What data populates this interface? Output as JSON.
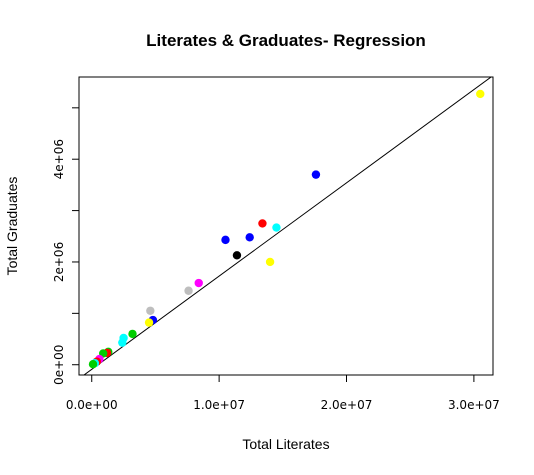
{
  "chart_data": {
    "type": "scatter",
    "title": "Literates & Graduates- Regression",
    "xlabel": "Total Literates",
    "ylabel": "Total Graduates",
    "xlim": [
      -1000000,
      31500000
    ],
    "ylim": [
      -200000,
      5600000
    ],
    "x_ticks": [
      0,
      10000000,
      20000000,
      30000000
    ],
    "x_tick_labels": [
      "0.0e+00",
      "1.0e+07",
      "2.0e+07",
      "3.0e+07"
    ],
    "y_ticks": [
      0,
      1000000,
      2000000,
      3000000,
      4000000,
      5000000
    ],
    "y_tick_labels": [
      "0e+00",
      "",
      "2e+06",
      "",
      "4e+06",
      ""
    ],
    "grid": false,
    "regression_line": {
      "intercept": -90000,
      "slope": 0.1815
    },
    "points": [
      {
        "x": 30500000,
        "y": 5270000,
        "color": "#ffff00"
      },
      {
        "x": 17600000,
        "y": 3700000,
        "color": "#0000ff"
      },
      {
        "x": 14500000,
        "y": 2670000,
        "color": "#00ffff"
      },
      {
        "x": 13400000,
        "y": 2750000,
        "color": "#ff0000"
      },
      {
        "x": 12400000,
        "y": 2480000,
        "color": "#0000ff"
      },
      {
        "x": 10500000,
        "y": 2430000,
        "color": "#0000ff"
      },
      {
        "x": 11400000,
        "y": 2130000,
        "color": "#000000"
      },
      {
        "x": 14000000,
        "y": 2000000,
        "color": "#ffff00"
      },
      {
        "x": 8400000,
        "y": 1590000,
        "color": "#ff00ff"
      },
      {
        "x": 7600000,
        "y": 1440000,
        "color": "#bebebe"
      },
      {
        "x": 4600000,
        "y": 1050000,
        "color": "#bebebe"
      },
      {
        "x": 4800000,
        "y": 870000,
        "color": "#0000ff"
      },
      {
        "x": 4500000,
        "y": 820000,
        "color": "#ffff00"
      },
      {
        "x": 3200000,
        "y": 600000,
        "color": "#00cd00"
      },
      {
        "x": 2500000,
        "y": 520000,
        "color": "#00ffff"
      },
      {
        "x": 2400000,
        "y": 430000,
        "color": "#00ffff"
      },
      {
        "x": 1300000,
        "y": 250000,
        "color": "#00cd00"
      },
      {
        "x": 1200000,
        "y": 230000,
        "color": "#ff0000"
      },
      {
        "x": 900000,
        "y": 220000,
        "color": "#00cd00"
      },
      {
        "x": 600000,
        "y": 110000,
        "color": "#ff00ff"
      },
      {
        "x": 400000,
        "y": 60000,
        "color": "#ff0000"
      },
      {
        "x": 250000,
        "y": 30000,
        "color": "#00ffff"
      },
      {
        "x": 100000,
        "y": 10000,
        "color": "#00cd00"
      }
    ]
  }
}
